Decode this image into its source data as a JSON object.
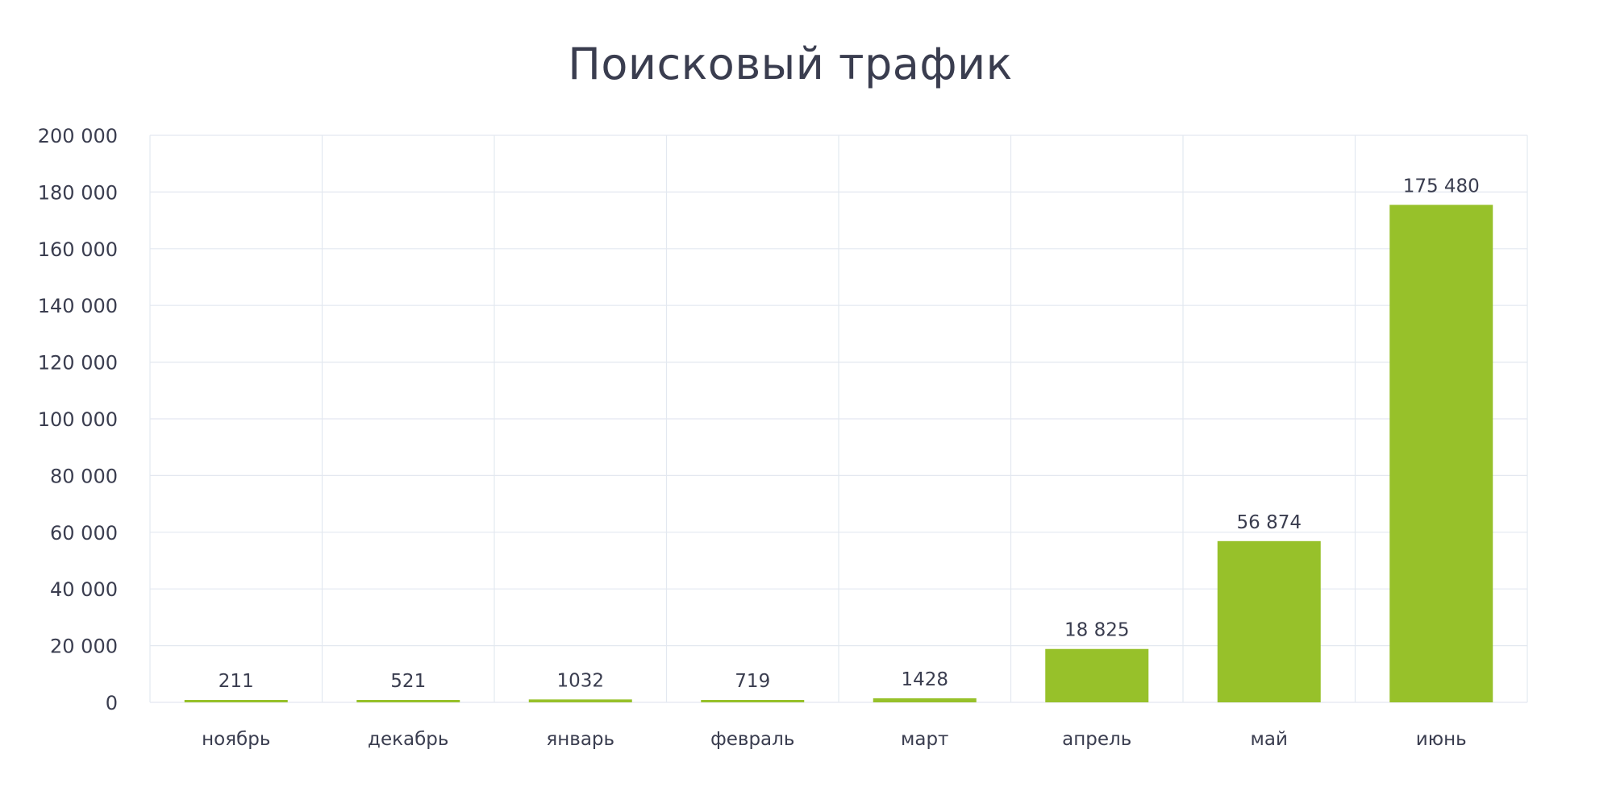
{
  "chart_data": {
    "type": "bar",
    "title": "Поисковый трафик",
    "categories": [
      "ноябрь",
      "декабрь",
      "январь",
      "февраль",
      "март",
      "апрель",
      "май",
      "июнь"
    ],
    "values": [
      211,
      521,
      1032,
      719,
      1428,
      18825,
      56874,
      175480
    ],
    "value_labels": [
      "211",
      "521",
      "1032",
      "719",
      "1428",
      "18 825",
      "56 874",
      "175 480"
    ],
    "ylim": [
      0,
      200000
    ],
    "yticks": [
      0,
      20000,
      40000,
      60000,
      80000,
      100000,
      120000,
      140000,
      160000,
      180000,
      200000
    ],
    "ytick_labels": [
      "0",
      "20 000",
      "40 000",
      "60 000",
      "80 000",
      "100 000",
      "120 000",
      "140 000",
      "160 000",
      "180 000",
      "200 000"
    ],
    "grid": true,
    "xlabel": "",
    "ylabel": "",
    "bar_color": "#97c12a",
    "grid_color": "#e3e8f0",
    "text_color": "#3a3d4f"
  }
}
